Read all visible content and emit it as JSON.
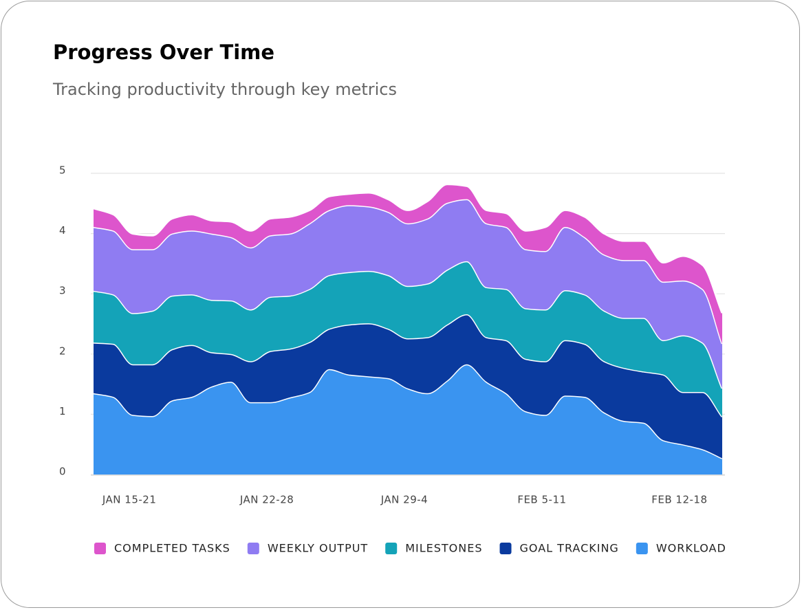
{
  "chart_data": {
    "type": "area",
    "stacked": true,
    "title": "Progress Over Time",
    "subtitle": "Tracking productivity through key metrics",
    "categories": [
      null,
      null,
      "JAN 15-21",
      null,
      null,
      null,
      null,
      null,
      null,
      "JAN 22-28",
      null,
      null,
      null,
      null,
      null,
      null,
      "JAN 29-4",
      null,
      null,
      null,
      null,
      null,
      null,
      "FEB 5-11",
      null,
      null,
      null,
      null,
      null,
      null,
      "FEB 12-18",
      null,
      null
    ],
    "series": [
      {
        "name": "COMPLETED TASKS",
        "color": "#dd55cc",
        "values": [
          0.31,
          0.27,
          0.26,
          0.23,
          0.25,
          0.27,
          0.22,
          0.26,
          0.28,
          0.28,
          0.28,
          0.22,
          0.23,
          0.19,
          0.23,
          0.21,
          0.22,
          0.29,
          0.31,
          0.22,
          0.22,
          0.23,
          0.31,
          0.4,
          0.28,
          0.34,
          0.35,
          0.32,
          0.32,
          0.32,
          0.41,
          0.4,
          0.51
        ]
      },
      {
        "name": "WEEKLY OUTPUT",
        "color": "#8f7cf2",
        "values": [
          1.06,
          1.06,
          1.06,
          1.02,
          1.03,
          1.06,
          1.1,
          1.05,
          1.03,
          1.02,
          1.03,
          1.09,
          1.08,
          1.11,
          1.07,
          1.05,
          1.04,
          1.08,
          1.11,
          1.03,
          1.06,
          1.03,
          0.98,
          0.97,
          1.05,
          0.95,
          0.93,
          0.96,
          0.96,
          0.97,
          0.91,
          0.89,
          0.74
        ]
      },
      {
        "name": "MILESTONES",
        "color": "#14a3b8",
        "values": [
          0.86,
          0.82,
          0.85,
          0.89,
          0.89,
          0.84,
          0.87,
          0.89,
          0.86,
          0.9,
          0.88,
          0.88,
          0.89,
          0.87,
          0.87,
          0.89,
          0.87,
          0.89,
          0.91,
          0.88,
          0.83,
          0.85,
          0.84,
          0.86,
          0.83,
          0.82,
          0.84,
          0.83,
          0.89,
          0.57,
          0.94,
          0.82,
          0.47
        ]
      },
      {
        "name": "GOAL TRACKING",
        "color": "#0a3a9e",
        "values": [
          0.84,
          0.88,
          0.84,
          0.86,
          0.85,
          0.86,
          0.57,
          0.46,
          0.68,
          0.85,
          0.81,
          0.83,
          0.67,
          0.83,
          0.88,
          0.82,
          0.83,
          0.93,
          0.93,
          0.83,
          0.74,
          0.88,
          0.87,
          0.89,
          0.92,
          0.88,
          0.85,
          0.88,
          0.85,
          1.09,
          0.87,
          0.95,
          0.69
        ]
      },
      {
        "name": "WORKLOAD",
        "color": "#3a94f0",
        "values": [
          1.35,
          1.29,
          0.99,
          0.97,
          1.23,
          1.29,
          1.46,
          1.54,
          1.2,
          1.2,
          1.28,
          1.37,
          1.75,
          1.66,
          1.63,
          1.6,
          1.43,
          1.35,
          1.56,
          1.83,
          1.54,
          1.35,
          1.05,
          0.99,
          1.31,
          1.29,
          1.03,
          0.89,
          0.86,
          0.57,
          0.5,
          0.42,
          0.27
        ]
      }
    ],
    "ylim": [
      0,
      5
    ],
    "yticks": [
      0,
      1,
      2,
      3,
      4,
      5
    ],
    "grid": true,
    "legend": "bottom"
  }
}
